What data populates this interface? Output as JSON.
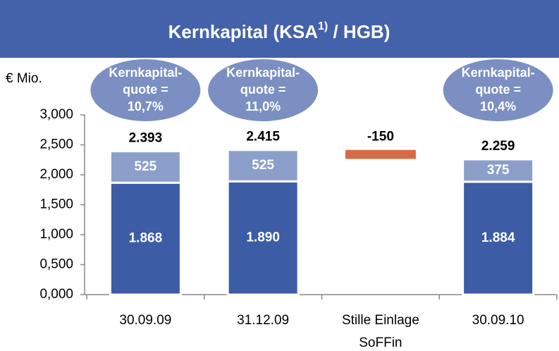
{
  "chart_data": {
    "type": "bar",
    "title": [
      "Kernkapital (KSA",
      "1)",
      " / HGB)"
    ],
    "unit": "€ Mio.",
    "categories": [
      [
        "30.09.09"
      ],
      [
        "31.12.09"
      ],
      [
        "Stille Einlage",
        "SoFFin"
      ],
      [
        "30.09.10"
      ]
    ],
    "series": [
      {
        "color": "#3d5ca6",
        "values": [
          1868,
          1890,
          null,
          1884
        ],
        "value_labels": [
          "1.868",
          "1.890",
          null,
          "1.884"
        ]
      },
      {
        "color": "#8c9fcb",
        "values": [
          525,
          525,
          null,
          375
        ],
        "value_labels": [
          "525",
          "525",
          null,
          "375"
        ]
      },
      {
        "color": "#d56b45",
        "delta": true,
        "values": [
          null,
          null,
          -150,
          null
        ],
        "value_labels": [
          null,
          null,
          "-150",
          null
        ]
      }
    ],
    "totals": [
      2393,
      2415,
      null,
      2259
    ],
    "total_labels": [
      "2.393",
      "2.415",
      null,
      "2.259"
    ],
    "ratio_labels": [
      [
        "Kernkapital-",
        "quote =",
        "10,7%"
      ],
      [
        "Kernkapital-",
        "quote =",
        "11,0%"
      ],
      null,
      [
        "Kernkapital-",
        "quote =",
        "10,4%"
      ]
    ],
    "ylim": [
      0,
      3000
    ],
    "yticks": [
      {
        "value": 0,
        "label": "0,000"
      },
      {
        "value": 500,
        "label": "0,500"
      },
      {
        "value": 1000,
        "label": "1,000"
      },
      {
        "value": 1500,
        "label": "1,500"
      },
      {
        "value": 2000,
        "label": "2,000"
      },
      {
        "value": 2500,
        "label": "2,500"
      },
      {
        "value": 3000,
        "label": "3,000"
      }
    ]
  }
}
